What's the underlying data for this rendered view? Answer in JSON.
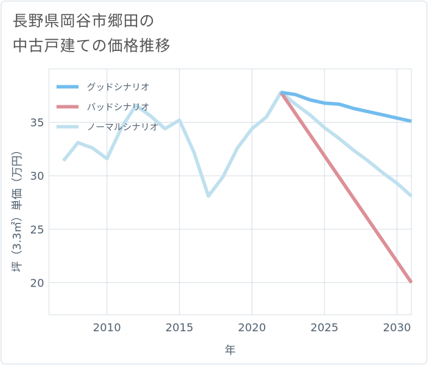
{
  "title": {
    "line1": "長野県岡谷市郷田の",
    "line2": "中古戸建ての価格推移"
  },
  "chart_data": {
    "type": "line",
    "title": "長野県岡谷市郷田の中古戸建ての価格推移",
    "xlabel": "年",
    "ylabel": "坪（3.3㎡）単価（万円）",
    "xlim": [
      2006,
      2031
    ],
    "ylim": [
      17,
      40
    ],
    "x_ticks": [
      2010,
      2015,
      2020,
      2025,
      2030
    ],
    "y_ticks": [
      20,
      25,
      30,
      35
    ],
    "grid": true,
    "legend_position": "top-left",
    "series": [
      {
        "name": "グッドシナリオ",
        "color": "#72bcee",
        "x": [
          2022,
          2023,
          2024,
          2025,
          2026,
          2027,
          2028,
          2029,
          2030,
          2031
        ],
        "values": [
          37.8,
          37.6,
          37.1,
          36.8,
          36.7,
          36.3,
          36.0,
          35.7,
          35.4,
          35.1
        ]
      },
      {
        "name": "バッドシナリオ",
        "color": "#dd8f97",
        "x": [
          2022,
          2031
        ],
        "values": [
          37.8,
          20.0
        ]
      },
      {
        "name": "ノーマルシナリオ",
        "color": "#bfe0ee",
        "x": [
          2007,
          2008,
          2009,
          2010,
          2011,
          2012,
          2013,
          2014,
          2015,
          2016,
          2017,
          2018,
          2019,
          2020,
          2021,
          2022,
          2023,
          2024,
          2025,
          2026,
          2027,
          2028,
          2029,
          2030,
          2031
        ],
        "values": [
          31.4,
          33.1,
          32.6,
          31.6,
          34.5,
          36.6,
          35.6,
          34.4,
          35.2,
          32.2,
          28.1,
          29.9,
          32.6,
          34.4,
          35.5,
          37.8,
          36.7,
          35.7,
          34.5,
          33.5,
          32.4,
          31.4,
          30.3,
          29.3,
          28.1
        ]
      }
    ]
  }
}
